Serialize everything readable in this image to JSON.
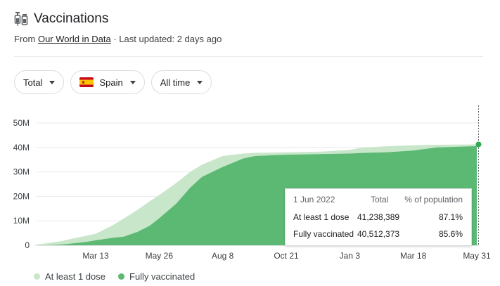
{
  "header": {
    "title": "Vaccinations",
    "source_prefix": "From ",
    "source_link": "Our World in Data",
    "updated": " · Last updated: 2 days ago",
    "icon": "syringe-icon"
  },
  "filters": {
    "metric": "Total",
    "country": "Spain",
    "range": "All time"
  },
  "tooltip": {
    "date": "1 Jun 2022",
    "col_total": "Total",
    "col_pct": "% of population",
    "rows": [
      {
        "label": "At least 1 dose",
        "total": "41,238,389",
        "pct": "87.1%"
      },
      {
        "label": "Fully vaccinated",
        "total": "40,512,373",
        "pct": "85.6%"
      }
    ]
  },
  "colors": {
    "at_least_1_dose": "#c8e6c9",
    "fully_vaccinated": "#5bb974",
    "accent": "#34a853"
  },
  "chart_data": {
    "type": "area",
    "x_tick_labels": [
      "Mar 13",
      "May 26",
      "Aug 8",
      "Oct 21",
      "Jan 3",
      "Mar 18",
      "May 31"
    ],
    "y_tick_labels": [
      "0",
      "10M",
      "20M",
      "30M",
      "40M",
      "50M"
    ],
    "ylim": [
      0,
      50000000
    ],
    "grid": true,
    "legend_position": "bottom-left",
    "x": [
      "2021-01-01",
      "2021-01-15",
      "2021-02-01",
      "2021-02-15",
      "2021-03-01",
      "2021-03-13",
      "2021-04-01",
      "2021-04-15",
      "2021-05-01",
      "2021-05-15",
      "2021-05-26",
      "2021-06-15",
      "2021-07-01",
      "2021-07-15",
      "2021-08-08",
      "2021-09-01",
      "2021-09-15",
      "2021-10-21",
      "2021-12-01",
      "2022-01-03",
      "2022-01-15",
      "2022-02-15",
      "2022-03-18",
      "2022-04-15",
      "2022-05-31"
    ],
    "series": [
      {
        "name": "At least 1 dose",
        "values": [
          200000,
          800000,
          1700000,
          2800000,
          3800000,
          4700000,
          8000000,
          11000000,
          14500000,
          18000000,
          20500000,
          25500000,
          30000000,
          33000000,
          36500000,
          37500000,
          37800000,
          38000000,
          38300000,
          39000000,
          39800000,
          40500000,
          40900000,
          41100000,
          41238389
        ]
      },
      {
        "name": "Fully vaccinated",
        "values": [
          0,
          0,
          300000,
          800000,
          1300000,
          2000000,
          3000000,
          3500000,
          5500000,
          8000000,
          11000000,
          17000000,
          23500000,
          28000000,
          32000000,
          35500000,
          36500000,
          37000000,
          37300000,
          37500000,
          37700000,
          38000000,
          38700000,
          40000000,
          40512373
        ]
      }
    ]
  },
  "legend": {
    "items": [
      "At least 1 dose",
      "Fully vaccinated"
    ]
  }
}
